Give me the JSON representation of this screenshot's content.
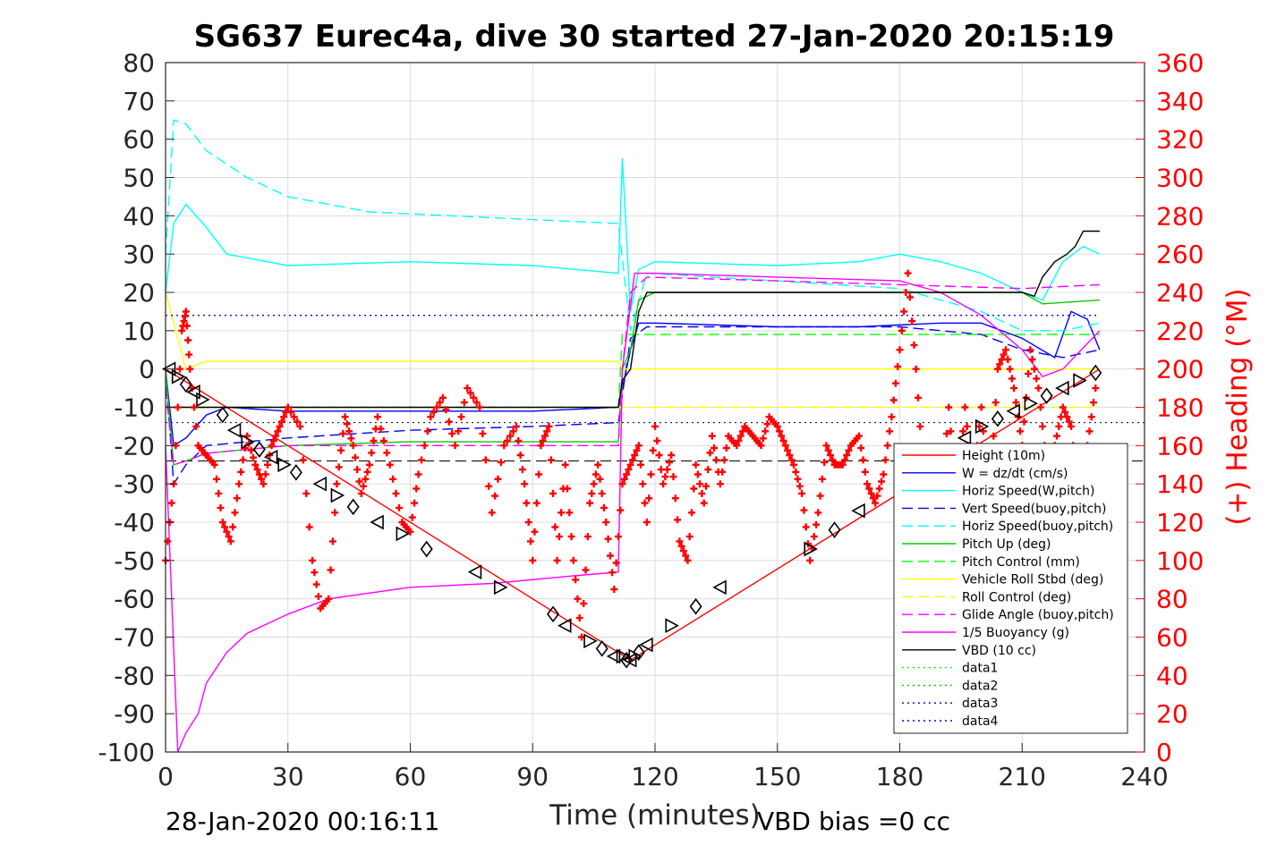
{
  "chart_data": {
    "type": "line",
    "title": "SG637 Eurec4a, dive 30 started 27-Jan-2020 20:15:19",
    "xlabel": "Time (minutes)",
    "ylabel_right": "(+) Heading (°M)",
    "footer_left": "28-Jan-2020 00:16:11",
    "footer_right": "VBD bias =0 cc",
    "xlim": [
      0,
      240
    ],
    "ylim": [
      -100,
      80
    ],
    "ylim_right": [
      0,
      360
    ],
    "xticks": [
      "0",
      "30",
      "60",
      "90",
      "120",
      "150",
      "180",
      "210",
      "240"
    ],
    "yticks": [
      "80",
      "70",
      "60",
      "50",
      "40",
      "30",
      "20",
      "10",
      "0",
      "-10",
      "-20",
      "-30",
      "-40",
      "-50",
      "-60",
      "-70",
      "-80",
      "-90",
      "-100"
    ],
    "yticks_right": [
      "360",
      "340",
      "320",
      "300",
      "280",
      "260",
      "240",
      "220",
      "200",
      "180",
      "160",
      "140",
      "120",
      "100",
      "80",
      "60",
      "40",
      "20",
      "0"
    ],
    "grid": true,
    "legend_position": "bottom-right",
    "series": [
      {
        "name": "Height (10m)",
        "color": "#ff0000",
        "style": "solid",
        "x": [
          0,
          114,
          229
        ],
        "y": [
          0,
          -76,
          0
        ]
      },
      {
        "name": "W = dz/dt (cm/s)",
        "color": "#0000ff",
        "style": "solid",
        "x": [
          0,
          2,
          5,
          10,
          15,
          30,
          60,
          90,
          111,
          112,
          114,
          116,
          120,
          150,
          170,
          190,
          200,
          210,
          218,
          222,
          226,
          229
        ],
        "y": [
          0,
          -20,
          -18,
          -12,
          -10,
          -11,
          -11,
          -11,
          -10,
          -5,
          5,
          12,
          12,
          11,
          11,
          12,
          12,
          8,
          3,
          15,
          13,
          5
        ]
      },
      {
        "name": "Horiz Speed(W,pitch)",
        "color": "#00ffff",
        "style": "solid",
        "x": [
          0,
          2,
          5,
          10,
          15,
          30,
          60,
          90,
          111,
          112,
          114,
          116,
          120,
          150,
          170,
          180,
          190,
          200,
          210,
          215,
          220,
          225,
          229
        ],
        "y": [
          20,
          38,
          43,
          37,
          30,
          27,
          28,
          27,
          25,
          55,
          15,
          26,
          28,
          27,
          28,
          30,
          28,
          25,
          20,
          18,
          28,
          32,
          30
        ]
      },
      {
        "name": "Vert Speed(buoy,pitch)",
        "color": "#0000ff",
        "style": "dashed",
        "x": [
          0,
          2,
          5,
          10,
          20,
          30,
          60,
          90,
          111,
          114,
          118,
          150,
          180,
          200,
          210,
          220,
          229
        ],
        "y": [
          0,
          -30,
          -25,
          -20,
          -19,
          -18,
          -16,
          -15,
          -14,
          8,
          11,
          11,
          11,
          9,
          5,
          3,
          5
        ]
      },
      {
        "name": "Horiz Speed(buoy,pitch)",
        "color": "#00ffff",
        "style": "dashed",
        "x": [
          0,
          2,
          5,
          10,
          20,
          30,
          50,
          70,
          90,
          111,
          114,
          118,
          150,
          180,
          200,
          210,
          220,
          229
        ],
        "y": [
          30,
          65,
          64,
          57,
          50,
          45,
          41,
          40,
          39,
          38,
          10,
          25,
          23,
          21,
          15,
          10,
          10,
          12
        ]
      },
      {
        "name": "Pitch Up (deg)",
        "color": "#00cc00",
        "style": "solid",
        "x": [
          0,
          2,
          5,
          10,
          30,
          60,
          90,
          111,
          112,
          114,
          116,
          120,
          150,
          180,
          210,
          215,
          229
        ],
        "y": [
          0,
          -25,
          -24,
          -22,
          -20,
          -19,
          -19,
          -19,
          0,
          5,
          18,
          20,
          20,
          20,
          20,
          17,
          18
        ]
      },
      {
        "name": "Pitch Control (mm)",
        "color": "#00ff00",
        "style": "dashed",
        "x": [
          0,
          2,
          111,
          112,
          116,
          210,
          229
        ],
        "y": [
          -10,
          -10,
          -10,
          9,
          9,
          9,
          9
        ]
      },
      {
        "name": "Vehicle Roll Stbd (deg)",
        "color": "#ffff00",
        "style": "solid",
        "x": [
          0,
          5,
          10,
          30,
          60,
          90,
          111,
          112,
          116,
          150,
          180,
          210,
          229
        ],
        "y": [
          20,
          0,
          2,
          2,
          2,
          2,
          2,
          0,
          0,
          0,
          0,
          0,
          0
        ]
      },
      {
        "name": "Roll Control (deg)",
        "color": "#ffff00",
        "style": "dashed",
        "x": [
          0,
          229
        ],
        "y": [
          -10,
          -10
        ]
      },
      {
        "name": "Glide Angle (buoy,pitch)",
        "color": "#ff00ff",
        "style": "dashed",
        "x": [
          0,
          2,
          5,
          10,
          30,
          60,
          90,
          111,
          112,
          114,
          118,
          150,
          180,
          210,
          229
        ],
        "y": [
          -5,
          -25,
          -24,
          -22,
          -20,
          -20,
          -20,
          -20,
          0,
          20,
          24,
          23,
          22,
          21,
          22
        ]
      },
      {
        "name": "1/5 Buoyancy (g)",
        "color": "#ff00ff",
        "style": "solid",
        "x": [
          0,
          3,
          5,
          8,
          10,
          15,
          20,
          30,
          40,
          60,
          80,
          100,
          111,
          112,
          115,
          120,
          150,
          180,
          190,
          200,
          210,
          215,
          220,
          229
        ],
        "y": [
          -20,
          -100,
          -95,
          -90,
          -82,
          -74,
          -69,
          -64,
          -60,
          -57,
          -56,
          -54,
          -53,
          0,
          25,
          25,
          24,
          23,
          20,
          14,
          5,
          -2,
          0,
          10
        ]
      },
      {
        "name": "VBD (10 cc)",
        "color": "#000000",
        "style": "solid",
        "x": [
          0,
          111,
          112,
          114,
          116,
          118,
          150,
          180,
          210,
          213,
          215,
          218,
          221,
          223,
          225,
          229
        ],
        "y": [
          -10,
          -10,
          -3,
          0,
          15,
          20,
          20,
          20,
          20,
          19,
          24,
          28,
          30,
          32,
          36,
          36
        ]
      },
      {
        "name": "data1",
        "color": "#00ff00",
        "style": "dotted",
        "x": [],
        "y": []
      },
      {
        "name": "data2",
        "color": "#00cc00",
        "style": "dotted",
        "x": [],
        "y": []
      },
      {
        "name": "data3",
        "color": "#0000aa",
        "style": "dotted",
        "x": [],
        "y": []
      },
      {
        "name": "data4",
        "color": "#0000ff",
        "style": "dotted",
        "x": [
          0,
          229
        ],
        "y": [
          14,
          14
        ]
      }
    ],
    "reference_lines": [
      {
        "color": "#000000",
        "style": "dotted",
        "y": -14
      },
      {
        "color": "#000000",
        "style": "dashed",
        "y": -24
      }
    ],
    "heading": {
      "color": "#ff0000",
      "marker": "+",
      "axis": "right",
      "x": [
        0,
        2,
        4,
        5,
        6,
        8,
        10,
        12,
        14,
        16,
        18,
        20,
        22,
        24,
        26,
        28,
        30,
        33,
        36,
        38,
        40,
        42,
        44,
        46,
        48,
        50,
        52,
        55,
        58,
        60,
        62,
        65,
        68,
        71,
        74,
        77,
        80,
        83,
        86,
        88,
        90,
        92,
        94,
        96,
        98,
        100,
        102,
        104,
        106,
        108,
        110,
        112,
        114,
        116,
        118,
        120,
        122,
        124,
        126,
        128,
        130,
        132,
        134,
        136,
        138,
        140,
        142,
        144,
        146,
        148,
        150,
        152,
        154,
        156,
        158,
        160,
        162,
        164,
        166,
        168,
        170,
        172,
        174,
        176,
        178,
        180,
        182,
        184,
        186,
        188,
        190,
        192,
        194,
        196,
        198,
        200,
        202,
        204,
        206,
        208,
        210,
        212,
        214,
        216,
        218,
        220,
        222,
        224,
        226,
        228
      ],
      "y": [
        100,
        140,
        220,
        230,
        200,
        160,
        155,
        150,
        120,
        110,
        140,
        165,
        150,
        140,
        160,
        170,
        180,
        170,
        100,
        75,
        80,
        140,
        175,
        160,
        135,
        150,
        175,
        150,
        120,
        115,
        145,
        175,
        185,
        160,
        190,
        180,
        125,
        160,
        170,
        140,
        100,
        160,
        170,
        100,
        150,
        100,
        60,
        130,
        150,
        120,
        85,
        140,
        150,
        160,
        120,
        170,
        140,
        155,
        110,
        100,
        150,
        130,
        165,
        140,
        165,
        160,
        170,
        165,
        160,
        175,
        170,
        160,
        150,
        135,
        100,
        125,
        160,
        150,
        150,
        160,
        165,
        140,
        130,
        145,
        175,
        210,
        250,
        200,
        140,
        120,
        125,
        180,
        130,
        180,
        140,
        180,
        130,
        200,
        210,
        190,
        160,
        210,
        190,
        150,
        160,
        180,
        170,
        130,
        160,
        190
      ]
    },
    "depth_markers": {
      "color": "#000000",
      "markers": [
        "triangle-left",
        "triangle-right",
        "diamond"
      ],
      "x": [
        1,
        3,
        5,
        7,
        9,
        14,
        17,
        20,
        23,
        26,
        29,
        32,
        38,
        42,
        46,
        52,
        58,
        64,
        76,
        82,
        95,
        98,
        104,
        107,
        110,
        112,
        113,
        114,
        115,
        116,
        118,
        124,
        130,
        136,
        158,
        164,
        170,
        182,
        190,
        196,
        200,
        204,
        208,
        212,
        216,
        220,
        224,
        228
      ],
      "y": [
        0,
        -2,
        -4,
        -6,
        -8,
        -12,
        -16,
        -19,
        -21,
        -23,
        -25,
        -27,
        -30,
        -33,
        -36,
        -40,
        -43,
        -47,
        -53,
        -57,
        -64,
        -67,
        -71,
        -73,
        -75,
        -75,
        -76,
        -76,
        -75,
        -74,
        -72,
        -67,
        -62,
        -57,
        -47,
        -42,
        -37,
        -30,
        -22,
        -18,
        -15,
        -13,
        -11,
        -9,
        -7,
        -5,
        -3,
        -1
      ]
    }
  }
}
